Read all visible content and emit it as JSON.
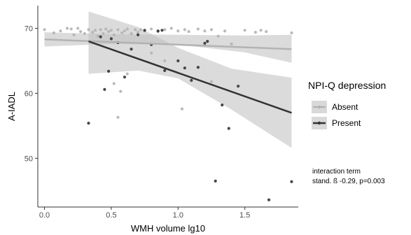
{
  "chart_data": {
    "type": "scatter",
    "xlabel": "WMH volume lg10",
    "ylabel": "A-IADL",
    "xlim": [
      -0.05,
      1.9
    ],
    "ylim": [
      42.5,
      73.5
    ],
    "xticks": [
      0.0,
      0.5,
      1.0,
      1.5
    ],
    "xtick_labels": [
      "0.0",
      "0.5",
      "1.0",
      "1.5"
    ],
    "yticks": [
      50,
      60,
      70
    ],
    "ytick_labels": [
      "50",
      "60",
      "70"
    ],
    "grid": false,
    "legend_position": "right",
    "legend": {
      "title": "NPI-Q depression",
      "entries": [
        {
          "label": "Absent",
          "color": "#b3b3b3"
        },
        {
          "label": "Present",
          "color": "#333333"
        }
      ]
    },
    "annotation": {
      "line1": "interaction term",
      "line2": "stand. ß -0.29, p=0.003"
    },
    "series": [
      {
        "name": "Absent",
        "color": "#b3b3b3",
        "points": [
          [
            0.0,
            69.8
          ],
          [
            0.07,
            69.3
          ],
          [
            0.12,
            69.6
          ],
          [
            0.17,
            70.0
          ],
          [
            0.2,
            69.9
          ],
          [
            0.22,
            69.0
          ],
          [
            0.25,
            70.0
          ],
          [
            0.27,
            69.5
          ],
          [
            0.3,
            69.2
          ],
          [
            0.33,
            69.8
          ],
          [
            0.36,
            69.4
          ],
          [
            0.38,
            69.7
          ],
          [
            0.4,
            68.8
          ],
          [
            0.42,
            69.8
          ],
          [
            0.44,
            69.2
          ],
          [
            0.46,
            69.9
          ],
          [
            0.48,
            69.5
          ],
          [
            0.5,
            69.7
          ],
          [
            0.52,
            69.0
          ],
          [
            0.55,
            69.8
          ],
          [
            0.58,
            69.3
          ],
          [
            0.6,
            69.6
          ],
          [
            0.62,
            69.9
          ],
          [
            0.65,
            69.2
          ],
          [
            0.68,
            69.8
          ],
          [
            0.7,
            69.4
          ],
          [
            0.72,
            69.8
          ],
          [
            0.75,
            69.6
          ],
          [
            0.8,
            69.9
          ],
          [
            0.85,
            69.5
          ],
          [
            0.9,
            69.8
          ],
          [
            0.95,
            70.0
          ],
          [
            1.0,
            69.6
          ],
          [
            1.05,
            69.8
          ],
          [
            1.08,
            69.5
          ],
          [
            1.15,
            69.9
          ],
          [
            1.2,
            69.6
          ],
          [
            1.25,
            69.8
          ],
          [
            1.3,
            68.8
          ],
          [
            1.35,
            69.6
          ],
          [
            1.4,
            67.6
          ],
          [
            1.5,
            69.7
          ],
          [
            1.58,
            69.4
          ],
          [
            1.62,
            69.7
          ],
          [
            1.66,
            69.5
          ],
          [
            1.85,
            69.3
          ],
          [
            0.8,
            66.2
          ],
          [
            0.9,
            65.0
          ],
          [
            0.62,
            63.0
          ],
          [
            0.52,
            61.5
          ],
          [
            0.57,
            60.3
          ],
          [
            0.55,
            56.3
          ],
          [
            1.03,
            57.6
          ],
          [
            1.25,
            61.8
          ]
        ],
        "fit": {
          "x": [
            0.0,
            1.85
          ],
          "y": [
            68.3,
            66.8
          ]
        },
        "ci_upper": {
          "x": [
            0.0,
            0.5,
            1.0,
            1.5,
            1.85
          ],
          "y": [
            69.4,
            69.1,
            69.0,
            68.9,
            69.0
          ]
        },
        "ci_lower": {
          "x": [
            0.0,
            0.5,
            1.0,
            1.5,
            1.85
          ],
          "y": [
            67.2,
            67.6,
            67.5,
            66.3,
            64.7
          ]
        }
      },
      {
        "name": "Present",
        "color": "#333333",
        "points": [
          [
            0.33,
            55.4
          ],
          [
            0.45,
            60.6
          ],
          [
            0.48,
            63.4
          ],
          [
            0.5,
            68.4
          ],
          [
            0.55,
            67.8
          ],
          [
            0.6,
            62.5
          ],
          [
            0.65,
            66.8
          ],
          [
            0.7,
            69.0
          ],
          [
            0.75,
            69.7
          ],
          [
            0.8,
            67.5
          ],
          [
            0.85,
            69.6
          ],
          [
            0.88,
            69.7
          ],
          [
            0.9,
            63.5
          ],
          [
            1.0,
            65.0
          ],
          [
            1.05,
            63.9
          ],
          [
            1.1,
            62.0
          ],
          [
            1.15,
            64.0
          ],
          [
            1.2,
            67.7
          ],
          [
            1.28,
            46.5
          ],
          [
            1.33,
            58.2
          ],
          [
            1.38,
            54.6
          ],
          [
            1.45,
            61.1
          ],
          [
            1.68,
            43.6
          ],
          [
            1.85,
            46.4
          ],
          [
            1.22,
            68.0
          ],
          [
            0.42,
            68.7
          ]
        ],
        "fit": {
          "x": [
            0.33,
            1.85
          ],
          "y": [
            68.0,
            57.0
          ]
        },
        "ci_upper": {
          "x": [
            0.33,
            0.7,
            1.0,
            1.4,
            1.85
          ],
          "y": [
            72.6,
            70.2,
            67.0,
            63.8,
            62.4
          ]
        },
        "ci_lower": {
          "x": [
            0.33,
            0.7,
            1.0,
            1.4,
            1.85
          ],
          "y": [
            63.0,
            63.5,
            62.3,
            57.5,
            51.6
          ]
        }
      }
    ]
  }
}
